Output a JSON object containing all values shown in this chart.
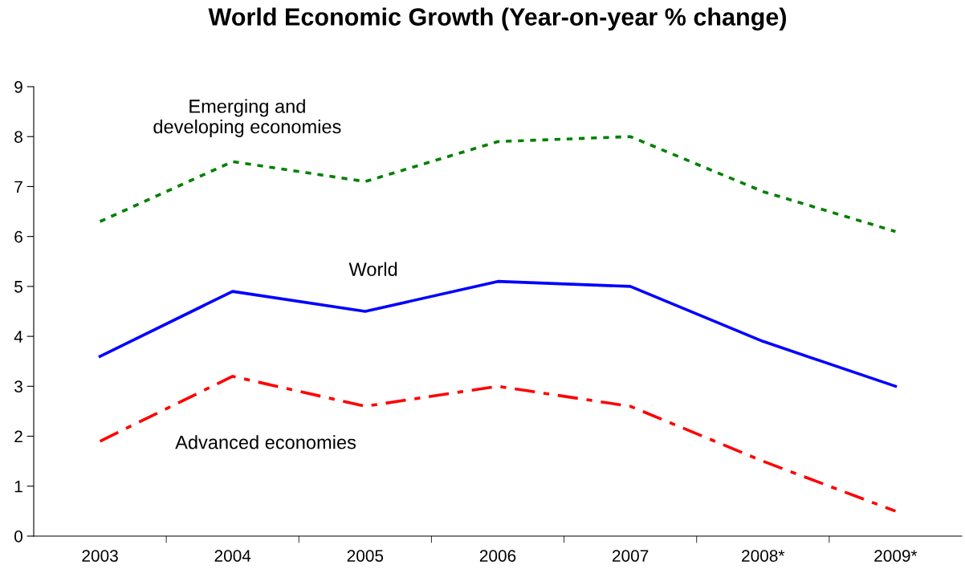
{
  "chart_data": {
    "type": "line",
    "title": "World Economic Growth (Year-on-year % change)",
    "categories": [
      "2003",
      "2004",
      "2005",
      "2006",
      "2007",
      "2008*",
      "2009*"
    ],
    "series": [
      {
        "name": "Emerging and\ndeveloping economies",
        "color": "#008000",
        "line_style": "dotted",
        "values": [
          6.3,
          7.5,
          7.1,
          7.9,
          8.0,
          6.9,
          6.1
        ]
      },
      {
        "name": "World",
        "color": "#0000ff",
        "line_style": "solid",
        "values": [
          3.6,
          4.9,
          4.5,
          5.1,
          5.0,
          3.9,
          3.0
        ]
      },
      {
        "name": "Advanced economies",
        "color": "#ff0000",
        "line_style": "dashdot",
        "values": [
          1.9,
          3.2,
          2.6,
          3.0,
          2.6,
          1.5,
          0.5
        ]
      }
    ],
    "ylim": [
      0,
      9
    ],
    "yticks": [
      0,
      1,
      2,
      3,
      4,
      5,
      6,
      7,
      8,
      9
    ],
    "grid": false,
    "legend": false,
    "marker": "none"
  }
}
